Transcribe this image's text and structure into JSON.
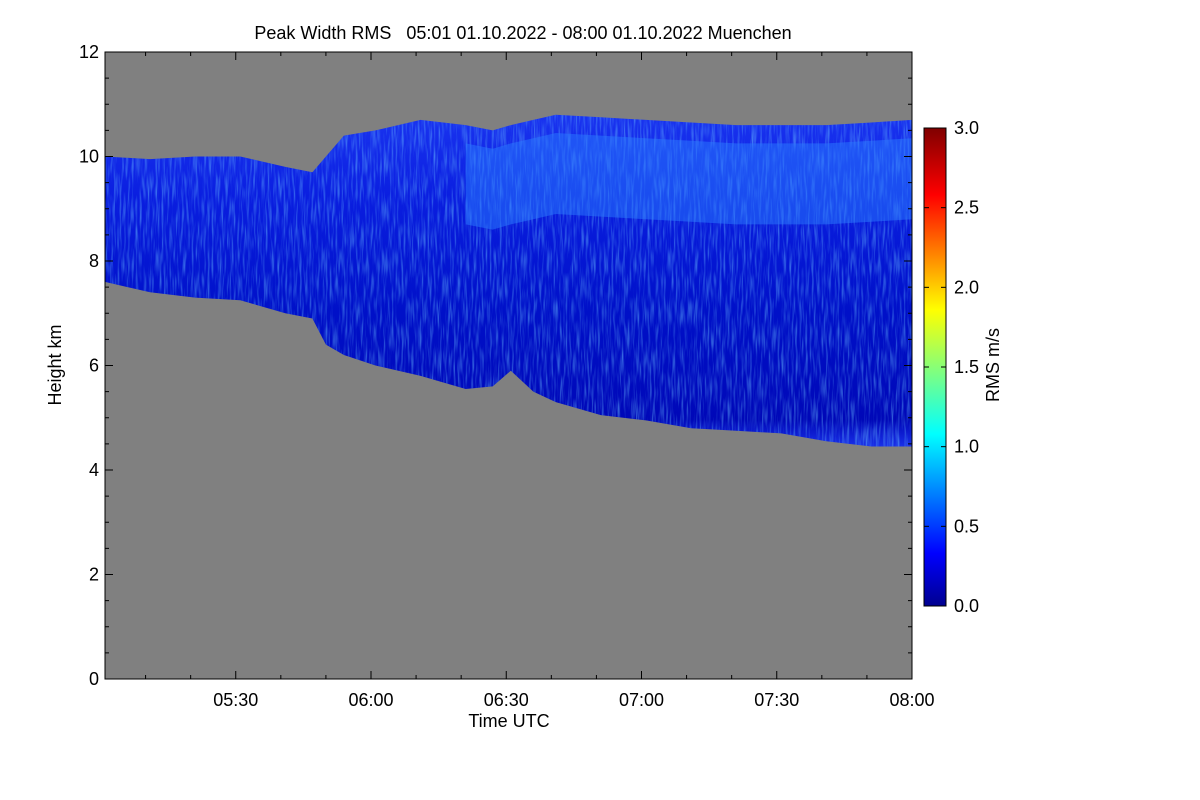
{
  "chart_data": {
    "type": "heatmap",
    "title": "Peak Width RMS   05:01 01.10.2022 - 08:00 01.10.2022 Muenchen",
    "xlabel": "Time UTC",
    "ylabel": "Height km",
    "colorbar_label": "RMS m/s",
    "xlim": [
      301,
      480
    ],
    "ylim": [
      0,
      12
    ],
    "x_ticks": [
      {
        "value": 330,
        "label": "05:30"
      },
      {
        "value": 360,
        "label": "06:00"
      },
      {
        "value": 390,
        "label": "06:30"
      },
      {
        "value": 420,
        "label": "07:00"
      },
      {
        "value": 450,
        "label": "07:30"
      },
      {
        "value": 480,
        "label": "08:00"
      }
    ],
    "y_ticks": [
      {
        "value": 0,
        "label": "0"
      },
      {
        "value": 2,
        "label": "2"
      },
      {
        "value": 4,
        "label": "4"
      },
      {
        "value": 6,
        "label": "6"
      },
      {
        "value": 8,
        "label": "8"
      },
      {
        "value": 10,
        "label": "10"
      },
      {
        "value": 12,
        "label": "12"
      }
    ],
    "colorbar_range": [
      0.0,
      3.0
    ],
    "colorbar_ticks": [
      {
        "value": 0.0,
        "label": "0.0"
      },
      {
        "value": 0.5,
        "label": "0.5"
      },
      {
        "value": 1.0,
        "label": "1.0"
      },
      {
        "value": 1.5,
        "label": "1.5"
      },
      {
        "value": 2.0,
        "label": "2.0"
      },
      {
        "value": 2.5,
        "label": "2.5"
      },
      {
        "value": 3.0,
        "label": "3.0"
      }
    ],
    "no_data_color": "#808080",
    "cloud": {
      "time_minutes": [
        301,
        311,
        321,
        331,
        341,
        347,
        350,
        354,
        361,
        371,
        381,
        387,
        391,
        396,
        401,
        411,
        421,
        431,
        441,
        451,
        461,
        471,
        480
      ],
      "base_km": [
        7.6,
        7.4,
        7.3,
        7.25,
        7.0,
        6.9,
        6.4,
        6.2,
        6.0,
        5.8,
        5.55,
        5.6,
        5.9,
        5.5,
        5.3,
        5.05,
        4.95,
        4.8,
        4.75,
        4.7,
        4.55,
        4.45,
        4.45
      ],
      "top_km": [
        10.0,
        9.95,
        10.0,
        10.0,
        9.8,
        9.7,
        10.0,
        10.4,
        10.5,
        10.7,
        10.6,
        10.5,
        10.6,
        10.7,
        10.8,
        10.75,
        10.7,
        10.65,
        10.6,
        10.6,
        10.6,
        10.65,
        10.7
      ],
      "typical_rms_m_s": 0.3,
      "peak_rms_m_s": 0.9
    }
  }
}
